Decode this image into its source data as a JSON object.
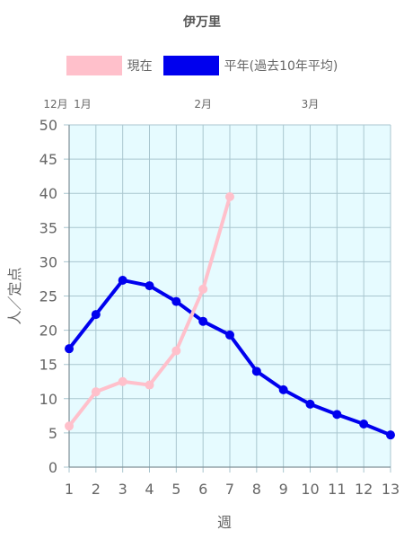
{
  "chart_data": {
    "type": "line",
    "title": "伊万里",
    "xlabel": "週",
    "ylabel": "人／定点",
    "categories": [
      "1",
      "2",
      "3",
      "4",
      "5",
      "6",
      "7",
      "8",
      "9",
      "10",
      "11",
      "12",
      "13"
    ],
    "ylim": [
      0,
      50
    ],
    "yticks": [
      0,
      5,
      10,
      15,
      20,
      25,
      30,
      35,
      40,
      45,
      50
    ],
    "month_labels": [
      {
        "label": "12月",
        "week": 1
      },
      {
        "label": "1月",
        "week": 1
      },
      {
        "label": "2月",
        "week": 6
      },
      {
        "label": "3月",
        "week": 10
      }
    ],
    "plot_background": "#e6fbff",
    "grid": true,
    "legend_position": "top",
    "series": [
      {
        "name": "現在",
        "color": "#ffc0cb",
        "values": [
          6,
          11,
          12.5,
          12,
          17,
          26,
          39.5,
          null,
          null,
          null,
          null,
          null,
          null
        ]
      },
      {
        "name": "平年(過去10年平均)",
        "color": "#0000ee",
        "values": [
          17.3,
          22.3,
          27.3,
          26.5,
          24.2,
          21.3,
          19.3,
          14,
          11.3,
          9.2,
          7.7,
          6.3,
          4.7
        ]
      }
    ]
  }
}
